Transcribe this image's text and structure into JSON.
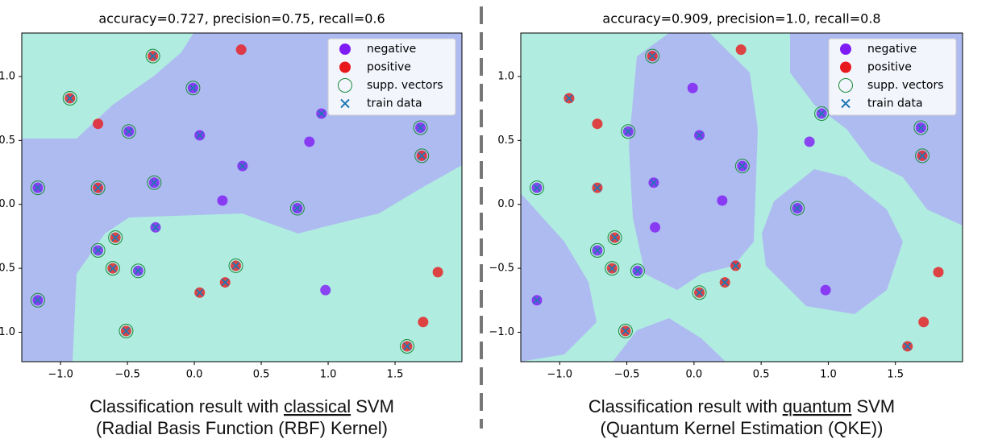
{
  "chart_data": [
    {
      "type": "scatter",
      "title": "accuracy=0.727, precision=0.75, recall=0.6",
      "caption": {
        "before": "Classification result with ",
        "underlined": "classical",
        "after": " SVM",
        "line2": "(Radial Basis Function (RBF) Kernel)"
      },
      "xlim": [
        -1.29,
        2.0
      ],
      "ylim": [
        -1.23,
        1.34
      ],
      "xticks": [
        {
          "value": -1.0,
          "label": "−1.0"
        },
        {
          "value": -0.5,
          "label": "−0.5"
        },
        {
          "value": 0.0,
          "label": "0.0"
        },
        0.5,
        {
          "value": 1.0,
          "label": "1.0"
        },
        1.5
      ],
      "yticks": [
        {
          "value": -1.0,
          "label": "−1.0"
        },
        {
          "value": -0.5,
          "label": "−0.5"
        },
        {
          "value": 0.0,
          "label": "0.0"
        },
        0.5,
        {
          "value": 1.0,
          "label": "1.0"
        }
      ],
      "legend": "upper right",
      "series": [
        {
          "name": "negative",
          "color": "#7f1cf5",
          "x": [
            -0.01,
            -0.49,
            0.04,
            0.86,
            0.95,
            1.69,
            0.36,
            -1.17,
            -0.3,
            0.21,
            0.77,
            -0.29,
            -0.72,
            -0.42,
            -1.17,
            0.98
          ],
          "values": [
            0.91,
            0.57,
            0.54,
            0.49,
            0.71,
            0.6,
            0.3,
            0.13,
            0.17,
            0.03,
            -0.03,
            -0.18,
            -0.36,
            -0.52,
            -0.75,
            -0.67
          ]
        },
        {
          "name": "positive",
          "color": "#e8191c",
          "x": [
            -0.31,
            0.35,
            -0.93,
            -0.72,
            1.7,
            -0.72,
            -0.59,
            -0.61,
            0.31,
            0.23,
            0.04,
            1.82,
            -0.51,
            1.71,
            1.59
          ],
          "values": [
            1.16,
            1.21,
            0.83,
            0.63,
            0.38,
            0.13,
            -0.26,
            -0.5,
            -0.48,
            -0.61,
            -0.69,
            -0.53,
            -0.99,
            -0.92,
            -1.11
          ]
        },
        {
          "name": "supp. vectors",
          "color": "#1a8a3a",
          "x": [
            -0.31,
            -0.93,
            -0.01,
            -0.49,
            1.69,
            1.7,
            -1.17,
            -0.72,
            -0.3,
            0.77,
            -0.59,
            -0.72,
            -0.61,
            -0.42,
            0.31,
            -1.17,
            -0.51,
            1.59
          ],
          "values": [
            1.16,
            0.83,
            0.91,
            0.57,
            0.6,
            0.38,
            0.13,
            0.13,
            0.17,
            -0.03,
            -0.26,
            -0.36,
            -0.5,
            -0.52,
            -0.48,
            -0.75,
            -0.99,
            -1.11
          ]
        },
        {
          "name": "train data",
          "color": "#1f77b4",
          "x": [
            -0.31,
            -0.93,
            -0.01,
            -0.49,
            0.04,
            0.95,
            1.69,
            1.7,
            0.36,
            -1.17,
            -0.72,
            -0.3,
            0.77,
            -0.29,
            -0.59,
            -0.72,
            -0.61,
            -0.42,
            0.31,
            0.23,
            0.04,
            -1.17,
            -0.51,
            1.59
          ],
          "values": [
            1.16,
            0.83,
            0.91,
            0.57,
            0.54,
            0.71,
            0.6,
            0.38,
            0.3,
            0.13,
            0.13,
            0.17,
            -0.03,
            -0.18,
            -0.26,
            -0.36,
            -0.5,
            -0.52,
            -0.48,
            -0.61,
            -0.69,
            -0.75,
            -0.99,
            -1.11
          ]
        }
      ]
    },
    {
      "type": "scatter",
      "title": "accuracy=0.909, precision=1.0, recall=0.8",
      "caption": {
        "before": "Classification result with ",
        "underlined": "quantum",
        "after": " SVM",
        "line2": "(Quantum Kernel Estimation (QKE))"
      },
      "xlim": [
        -1.29,
        2.0
      ],
      "ylim": [
        -1.23,
        1.34
      ],
      "xticks": [
        {
          "value": -1.0,
          "label": "−1.0"
        },
        {
          "value": -0.5,
          "label": "−0.5"
        },
        {
          "value": 0.0,
          "label": "0.0"
        },
        0.5,
        {
          "value": 1.0,
          "label": "1.0"
        },
        1.5
      ],
      "yticks": [
        {
          "value": -1.0,
          "label": "−1.0"
        },
        {
          "value": -0.5,
          "label": "−0.5"
        },
        {
          "value": 0.0,
          "label": "0.0"
        },
        0.5,
        {
          "value": 1.0,
          "label": "1.0"
        }
      ],
      "legend": "upper right",
      "series": [
        {
          "name": "negative",
          "color": "#7f1cf5",
          "x": [
            -0.01,
            -0.49,
            0.04,
            0.86,
            0.95,
            1.69,
            0.36,
            -1.17,
            -0.3,
            0.21,
            0.77,
            -0.29,
            -0.72,
            -0.42,
            -1.17,
            0.98
          ],
          "values": [
            0.91,
            0.57,
            0.54,
            0.49,
            0.71,
            0.6,
            0.3,
            0.13,
            0.17,
            0.03,
            -0.03,
            -0.18,
            -0.36,
            -0.52,
            -0.75,
            -0.67
          ]
        },
        {
          "name": "positive",
          "color": "#e8191c",
          "x": [
            -0.31,
            0.35,
            -0.93,
            -0.72,
            1.7,
            -0.72,
            -0.59,
            -0.61,
            0.31,
            0.23,
            0.04,
            1.82,
            -0.51,
            1.71,
            1.59
          ],
          "values": [
            1.16,
            1.21,
            0.83,
            0.63,
            0.38,
            0.13,
            -0.26,
            -0.5,
            -0.48,
            -0.61,
            -0.69,
            -0.53,
            -0.99,
            -0.92,
            -1.11
          ]
        },
        {
          "name": "supp. vectors",
          "color": "#1a8a3a",
          "x": [
            -0.31,
            -0.49,
            0.95,
            1.69,
            1.7,
            0.36,
            -1.17,
            0.77,
            -0.59,
            -0.72,
            -0.61,
            -0.42,
            0.04,
            -0.51
          ],
          "values": [
            1.16,
            0.57,
            0.71,
            0.6,
            0.38,
            0.3,
            0.13,
            -0.03,
            -0.26,
            -0.36,
            -0.5,
            -0.52,
            -0.69,
            -0.99
          ]
        },
        {
          "name": "train data",
          "color": "#1f77b4",
          "x": [
            -0.31,
            -0.93,
            -0.49,
            0.04,
            0.95,
            1.69,
            1.7,
            0.36,
            -1.17,
            -0.72,
            -0.3,
            0.77,
            -0.59,
            -0.72,
            -0.61,
            -0.42,
            0.31,
            0.23,
            0.04,
            -1.17,
            -0.51,
            1.59
          ],
          "values": [
            1.16,
            0.83,
            0.57,
            0.54,
            0.71,
            0.6,
            0.38,
            0.3,
            0.13,
            0.13,
            0.17,
            -0.03,
            -0.26,
            -0.36,
            -0.5,
            -0.52,
            -0.48,
            -0.61,
            -0.69,
            -0.75,
            -0.99,
            -1.11
          ]
        }
      ]
    }
  ]
}
